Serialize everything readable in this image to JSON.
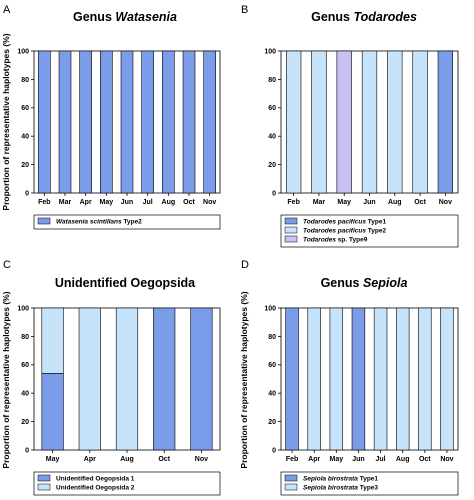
{
  "chart_data": [
    {
      "type": "bar",
      "panel": "A",
      "title": {
        "prefix": "Genus ",
        "italic": "Watasenia"
      },
      "ylabel": "Proportion of representative haplotypes (%)",
      "xlabel": "",
      "ylim": [
        0,
        100
      ],
      "yticks": [
        0,
        20,
        40,
        60,
        80,
        100
      ],
      "stacked": true,
      "categories": [
        "Feb",
        "Mar",
        "Apr",
        "May",
        "Jun",
        "Jul",
        "Aug",
        "Oct",
        "Nov"
      ],
      "series": [
        {
          "name": "Watasenia scintillans Type2",
          "name_italic": "Watasenia scintillans",
          "name_suffix": " Type2",
          "color": "#7b9ce8",
          "values": [
            100,
            100,
            100,
            100,
            100,
            100,
            100,
            100,
            100
          ]
        }
      ]
    },
    {
      "type": "bar",
      "panel": "B",
      "title": {
        "prefix": "Genus ",
        "italic": "Todarodes"
      },
      "ylabel": "",
      "xlabel": "",
      "ylim": [
        0,
        100
      ],
      "yticks": [
        0,
        20,
        40,
        60,
        80,
        100
      ],
      "stacked": true,
      "categories": [
        "Feb",
        "Mar",
        "May",
        "Jun",
        "Aug",
        "Oct",
        "Nov"
      ],
      "series": [
        {
          "name": "Todarodes pacificus Type1",
          "name_italic": "Todarodes pacificus",
          "name_suffix": " Type1",
          "color": "#7b9ce8",
          "values": [
            0,
            0,
            0,
            0,
            0,
            0,
            100
          ]
        },
        {
          "name": "Todarodes pacificus Type2",
          "name_italic": "Todarodes pacificus",
          "name_suffix": " Type2",
          "color": "#c6e3fa",
          "values": [
            100,
            100,
            0,
            100,
            100,
            100,
            0
          ]
        },
        {
          "name": "Todarodes sp. Type9",
          "name_italic": "Todarodes",
          "name_suffix": " sp. Type9",
          "color": "#c7c2f2",
          "values": [
            0,
            0,
            100,
            0,
            0,
            0,
            0
          ]
        }
      ]
    },
    {
      "type": "bar",
      "panel": "C",
      "title": {
        "prefix": "Unidentified Oegopsida",
        "italic": ""
      },
      "ylabel": "Proportion of representative haplotypes (%)",
      "xlabel": "",
      "ylim": [
        0,
        100
      ],
      "yticks": [
        0,
        20,
        40,
        60,
        80,
        100
      ],
      "stacked": true,
      "categories": [
        "May",
        "Apr",
        "Aug",
        "Oct",
        "Nov"
      ],
      "series": [
        {
          "name": "Unidentified Oegopsida 1",
          "name_italic": "",
          "name_suffix": "Unidentified Oegopsida 1",
          "color": "#7b9ce8",
          "values": [
            54,
            0,
            0,
            100,
            100
          ]
        },
        {
          "name": "Unidentified Oegopsida 2",
          "name_italic": "",
          "name_suffix": "Unidentified Oegopsida 2",
          "color": "#c6e3fa",
          "values": [
            46,
            100,
            100,
            0,
            0
          ]
        }
      ]
    },
    {
      "type": "bar",
      "panel": "D",
      "title": {
        "prefix": "Genus ",
        "italic": "Sepiola"
      },
      "ylabel": "Proportion of representative haplotypes (%)",
      "xlabel": "",
      "ylim": [
        0,
        100
      ],
      "yticks": [
        0,
        20,
        40,
        60,
        80,
        100
      ],
      "stacked": true,
      "categories": [
        "Feb",
        "Apr",
        "May",
        "Jun",
        "Jul",
        "Aug",
        "Oct",
        "Nov"
      ],
      "series": [
        {
          "name": "Sepiola birostrata Type1",
          "name_italic": "Sepiola birostrata",
          "name_suffix": " Type1",
          "color": "#7b9ce8",
          "values": [
            100,
            0,
            0,
            100,
            0,
            0,
            0,
            0
          ]
        },
        {
          "name": "Sepiola birostrata Type3",
          "name_italic": "Sepiola birostrata",
          "name_suffix": " Type3",
          "color": "#c6e3fa",
          "values": [
            0,
            100,
            100,
            0,
            100,
            100,
            100,
            100
          ]
        }
      ]
    }
  ]
}
